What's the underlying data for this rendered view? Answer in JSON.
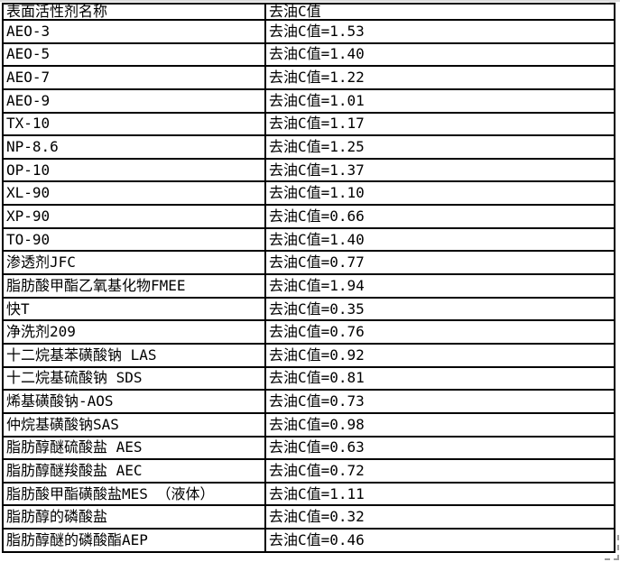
{
  "page": {
    "background_color": "#ffffff",
    "border_color": "#000000",
    "text_color": "#000000"
  },
  "table": {
    "header": {
      "name_col": "表面活性剂名称",
      "value_col": "去油C值"
    },
    "value_prefix": "去油C值",
    "rows": [
      {
        "name": "AEO-3",
        "value_text": "去油C值=1.53",
        "c_value": 1.53
      },
      {
        "name": "AEO-5",
        "value_text": "去油C值=1.40",
        "c_value": 1.4
      },
      {
        "name": "AEO-7",
        "value_text": "去油C值=1.22",
        "c_value": 1.22
      },
      {
        "name": "AEO-9",
        "value_text": "去油C值=1.01",
        "c_value": 1.01
      },
      {
        "name": "TX-10",
        "value_text": "去油C值=1.17",
        "c_value": 1.17
      },
      {
        "name": "NP-8.6",
        "value_text": "去油C值=1.25",
        "c_value": 1.25
      },
      {
        "name": "OP-10",
        "value_text": "去油C值=1.37",
        "c_value": 1.37
      },
      {
        "name": "XL-90",
        "value_text": "去油C值=1.10",
        "c_value": 1.1
      },
      {
        "name": "XP-90",
        "value_text": "去油C值=0.66",
        "c_value": 0.66
      },
      {
        "name": "TO-90",
        "value_text": "去油C值=1.40",
        "c_value": 1.4
      },
      {
        "name": "渗透剂JFC",
        "value_text": "去油C值=0.77",
        "c_value": 0.77
      },
      {
        "name": "脂肪酸甲酯乙氧基化物FMEE",
        "value_text": "去油C值=1.94",
        "c_value": 1.94
      },
      {
        "name": "快T",
        "value_text": "去油C值=0.35",
        "c_value": 0.35
      },
      {
        "name": "净洗剂209",
        "value_text": "去油C值=0.76",
        "c_value": 0.76
      },
      {
        "name": "十二烷基苯磺酸钠 LAS",
        "value_text": "去油C值=0.92",
        "c_value": 0.92
      },
      {
        "name": "十二烷基硫酸钠 SDS",
        "value_text": "去油C值=0.81",
        "c_value": 0.81
      },
      {
        "name": "烯基磺酸钠-AOS",
        "value_text": "去油C值=0.73",
        "c_value": 0.73
      },
      {
        "name": "仲烷基磺酸钠SAS",
        "value_text": "去油C值=0.98",
        "c_value": 0.98
      },
      {
        "name": "脂肪醇醚硫酸盐 AES",
        "value_text": "去油C值=0.63",
        "c_value": 0.63
      },
      {
        "name": "脂肪醇醚羧酸盐 AEC",
        "value_text": "去油C值=0.72",
        "c_value": 0.72
      },
      {
        "name": "脂肪酸甲酯磺酸盐MES （液体）",
        "value_text": "去油C值=1.11",
        "c_value": 1.11
      },
      {
        "name": "脂肪醇的磷酸盐",
        "value_text": "去油C值=0.32",
        "c_value": 0.32
      },
      {
        "name": "脂肪醇醚的磷酸酯AEP",
        "value_text": "去油C值=0.46",
        "c_value": 0.46
      }
    ]
  }
}
